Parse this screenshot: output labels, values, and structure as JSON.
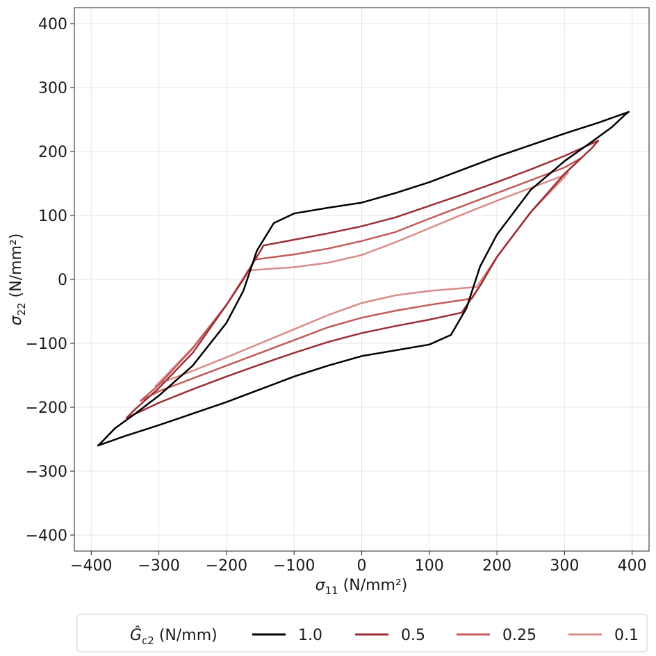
{
  "chart_data": {
    "type": "line",
    "title": "",
    "xlabel": "σ₁₁ (N/mm²)",
    "ylabel": "σ₂₂ (N/mm²)",
    "xlabel_parts": {
      "symbol": "σ",
      "sub": "11",
      "unit": " (N/mm²)"
    },
    "ylabel_parts": {
      "symbol": "σ",
      "sub": "22",
      "unit": " (N/mm²)"
    },
    "xlim": [
      -425,
      425
    ],
    "ylim": [
      -425,
      425
    ],
    "xticks": [
      -400,
      -300,
      -200,
      -100,
      0,
      100,
      200,
      300,
      400
    ],
    "yticks": [
      -400,
      -300,
      -200,
      -100,
      0,
      100,
      200,
      300,
      400
    ],
    "xtick_labels": [
      "−400",
      "−300",
      "−200",
      "−100",
      "0",
      "100",
      "200",
      "300",
      "400"
    ],
    "ytick_labels": [
      "−400",
      "−300",
      "−200",
      "−100",
      "0",
      "100",
      "200",
      "300",
      "400"
    ],
    "grid": true,
    "legend": {
      "placement": "bottom",
      "title": "Ĝc2 (N/mm)",
      "title_parts": {
        "symbol": "Ĝ",
        "sub": "c2",
        "unit": " (N/mm)"
      }
    },
    "series": [
      {
        "name": "1.0",
        "color": "#000000",
        "points": [
          [
            -130,
            88
          ],
          [
            -100,
            103
          ],
          [
            -50,
            112
          ],
          [
            0,
            120
          ],
          [
            50,
            135
          ],
          [
            100,
            152
          ],
          [
            150,
            172
          ],
          [
            200,
            192
          ],
          [
            250,
            210
          ],
          [
            300,
            228
          ],
          [
            350,
            245
          ],
          [
            395,
            262
          ],
          [
            390,
            258
          ],
          [
            370,
            238
          ],
          [
            340,
            215
          ],
          [
            300,
            185
          ],
          [
            250,
            140
          ],
          [
            200,
            70
          ],
          [
            175,
            20
          ],
          [
            155,
            -45
          ],
          [
            132,
            -87
          ],
          [
            100,
            -102
          ],
          [
            50,
            -111
          ],
          [
            0,
            -120
          ],
          [
            -50,
            -135
          ],
          [
            -100,
            -152
          ],
          [
            -150,
            -172
          ],
          [
            -200,
            -192
          ],
          [
            -250,
            -210
          ],
          [
            -300,
            -228
          ],
          [
            -350,
            -245
          ],
          [
            -390,
            -260
          ],
          [
            -385,
            -255
          ],
          [
            -365,
            -233
          ],
          [
            -335,
            -210
          ],
          [
            -300,
            -182
          ],
          [
            -250,
            -135
          ],
          [
            -200,
            -68
          ],
          [
            -175,
            -18
          ],
          [
            -155,
            45
          ],
          [
            -130,
            88
          ]
        ]
      },
      {
        "name": "0.5",
        "color": "#9b2e35",
        "points": [
          [
            -145,
            53
          ],
          [
            -100,
            62
          ],
          [
            -50,
            72
          ],
          [
            0,
            83
          ],
          [
            50,
            97
          ],
          [
            100,
            115
          ],
          [
            150,
            133
          ],
          [
            200,
            152
          ],
          [
            250,
            172
          ],
          [
            300,
            193
          ],
          [
            350,
            217
          ],
          [
            340,
            205
          ],
          [
            300,
            165
          ],
          [
            250,
            105
          ],
          [
            200,
            35
          ],
          [
            175,
            -10
          ],
          [
            148,
            -52
          ],
          [
            100,
            -63
          ],
          [
            50,
            -73
          ],
          [
            0,
            -84
          ],
          [
            -50,
            -98
          ],
          [
            -100,
            -115
          ],
          [
            -150,
            -133
          ],
          [
            -200,
            -152
          ],
          [
            -250,
            -172
          ],
          [
            -300,
            -193
          ],
          [
            -348,
            -217
          ],
          [
            -335,
            -203
          ],
          [
            -300,
            -170
          ],
          [
            -250,
            -115
          ],
          [
            -200,
            -40
          ],
          [
            -175,
            0
          ],
          [
            -145,
            53
          ]
        ]
      },
      {
        "name": "0.25",
        "color": "#c45a5a",
        "points": [
          [
            -158,
            31
          ],
          [
            -100,
            39
          ],
          [
            -50,
            48
          ],
          [
            0,
            60
          ],
          [
            50,
            74
          ],
          [
            100,
            95
          ],
          [
            150,
            115
          ],
          [
            200,
            135
          ],
          [
            250,
            155
          ],
          [
            300,
            175
          ],
          [
            325,
            190
          ],
          [
            300,
            165
          ],
          [
            250,
            105
          ],
          [
            200,
            35
          ],
          [
            175,
            -10
          ],
          [
            163,
            -30
          ],
          [
            100,
            -40
          ],
          [
            50,
            -49
          ],
          [
            0,
            -60
          ],
          [
            -50,
            -75
          ],
          [
            -100,
            -95
          ],
          [
            -150,
            -115
          ],
          [
            -200,
            -135
          ],
          [
            -250,
            -155
          ],
          [
            -300,
            -175
          ],
          [
            -327,
            -190
          ],
          [
            -300,
            -165
          ],
          [
            -250,
            -108
          ],
          [
            -200,
            -40
          ],
          [
            -175,
            0
          ],
          [
            -158,
            31
          ]
        ]
      },
      {
        "name": "0.1",
        "color": "#d98c88",
        "points": [
          [
            -168,
            14
          ],
          [
            -100,
            19
          ],
          [
            -50,
            26
          ],
          [
            0,
            38
          ],
          [
            50,
            58
          ],
          [
            100,
            80
          ],
          [
            150,
            102
          ],
          [
            200,
            123
          ],
          [
            250,
            143
          ],
          [
            300,
            163
          ],
          [
            305,
            167
          ],
          [
            300,
            160
          ],
          [
            250,
            105
          ],
          [
            200,
            35
          ],
          [
            170,
            -12
          ],
          [
            100,
            -18
          ],
          [
            50,
            -25
          ],
          [
            0,
            -37
          ],
          [
            -50,
            -56
          ],
          [
            -100,
            -78
          ],
          [
            -150,
            -100
          ],
          [
            -200,
            -122
          ],
          [
            -250,
            -143
          ],
          [
            -300,
            -163
          ],
          [
            -305,
            -167
          ],
          [
            -300,
            -162
          ],
          [
            -250,
            -107
          ],
          [
            -200,
            -40
          ],
          [
            -168,
            14
          ]
        ]
      }
    ]
  }
}
